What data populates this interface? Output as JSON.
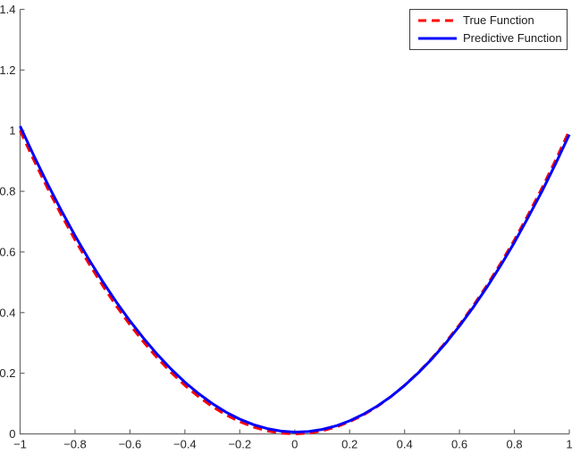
{
  "figure": {
    "background": "#ffffff"
  },
  "chart_data": {
    "type": "line",
    "title": "",
    "xlabel": "",
    "ylabel": "",
    "xlim": [
      -1,
      1
    ],
    "ylim": [
      0,
      1.4
    ],
    "grid": false,
    "legend_position": "top-right",
    "axis_color": "#6b6b6b",
    "tick_label_color": "#262626",
    "x_ticks": [
      {
        "v": -1,
        "label": "−1"
      },
      {
        "v": -0.8,
        "label": "−0.8"
      },
      {
        "v": -0.6,
        "label": "−0.6"
      },
      {
        "v": -0.4,
        "label": "−0.4"
      },
      {
        "v": -0.2,
        "label": "−0.2"
      },
      {
        "v": 0,
        "label": "0"
      },
      {
        "v": 0.2,
        "label": "0.2"
      },
      {
        "v": 0.4,
        "label": "0.4"
      },
      {
        "v": 0.6,
        "label": "0.6"
      },
      {
        "v": 0.8,
        "label": "0.8"
      },
      {
        "v": 1,
        "label": "1"
      }
    ],
    "y_ticks": [
      {
        "v": 0,
        "label": "0"
      },
      {
        "v": 0.2,
        "label": "0.2"
      },
      {
        "v": 0.4,
        "label": "0.4"
      },
      {
        "v": 0.6,
        "label": "0.6"
      },
      {
        "v": 0.8,
        "label": "0.8"
      },
      {
        "v": 1,
        "label": "1"
      },
      {
        "v": 1.2,
        "label": "1.2"
      },
      {
        "v": 1.4,
        "label": "1.4"
      }
    ],
    "x": [
      -1,
      -0.95,
      -0.9,
      -0.85,
      -0.8,
      -0.75,
      -0.7,
      -0.65,
      -0.6,
      -0.55,
      -0.5,
      -0.45,
      -0.4,
      -0.35,
      -0.3,
      -0.25,
      -0.2,
      -0.15,
      -0.1,
      -0.05,
      0,
      0.05,
      0.1,
      0.15,
      0.2,
      0.25,
      0.3,
      0.35,
      0.4,
      0.45,
      0.5,
      0.55,
      0.6,
      0.65,
      0.7,
      0.75,
      0.8,
      0.85,
      0.9,
      0.95,
      1
    ],
    "series": [
      {
        "name": "True Function",
        "color": "#ff0000",
        "style": "dashed",
        "width": 3,
        "values": [
          1,
          0.9025,
          0.81,
          0.7225,
          0.64,
          0.5625,
          0.49,
          0.4225,
          0.36,
          0.3025,
          0.25,
          0.2025,
          0.16,
          0.1225,
          0.09,
          0.0625,
          0.04,
          0.0225,
          0.01,
          0.0025,
          0,
          0.0025,
          0.01,
          0.0225,
          0.04,
          0.0625,
          0.09,
          0.1225,
          0.16,
          0.2025,
          0.25,
          0.3025,
          0.36,
          0.4225,
          0.49,
          0.5625,
          0.64,
          0.7225,
          0.81,
          0.9025,
          1
        ]
      },
      {
        "name": "Predictive Function",
        "color": "#0000ff",
        "style": "solid",
        "width": 3,
        "values": [
          1.015,
          0.9173,
          0.8246,
          0.7368,
          0.654,
          0.5762,
          0.5034,
          0.4355,
          0.3726,
          0.3147,
          0.2618,
          0.2138,
          0.1708,
          0.1328,
          0.0998,
          0.0717,
          0.0486,
          0.0305,
          0.0174,
          0.0092,
          0.006,
          0.0078,
          0.0146,
          0.0263,
          0.043,
          0.0647,
          0.0914,
          0.123,
          0.1596,
          0.2012,
          0.2478,
          0.2993,
          0.3558,
          0.4174,
          0.4838,
          0.5552,
          0.6316,
          0.7138,
          0.7994,
          0.8907,
          0.987
        ]
      }
    ]
  }
}
